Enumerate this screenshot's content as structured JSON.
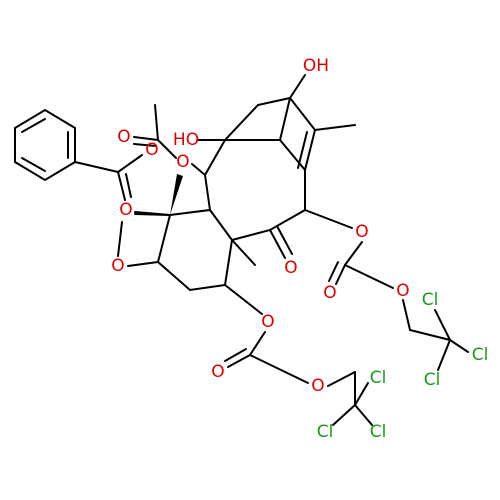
{
  "atoms": [
    "OH",
    "O",
    "O",
    "HO",
    "O",
    "O",
    "O",
    "O",
    "O",
    "O",
    "O",
    "Cl",
    "Cl",
    "Cl",
    "O",
    "O",
    "O",
    "Cl",
    "Cl",
    "Cl"
  ]
}
